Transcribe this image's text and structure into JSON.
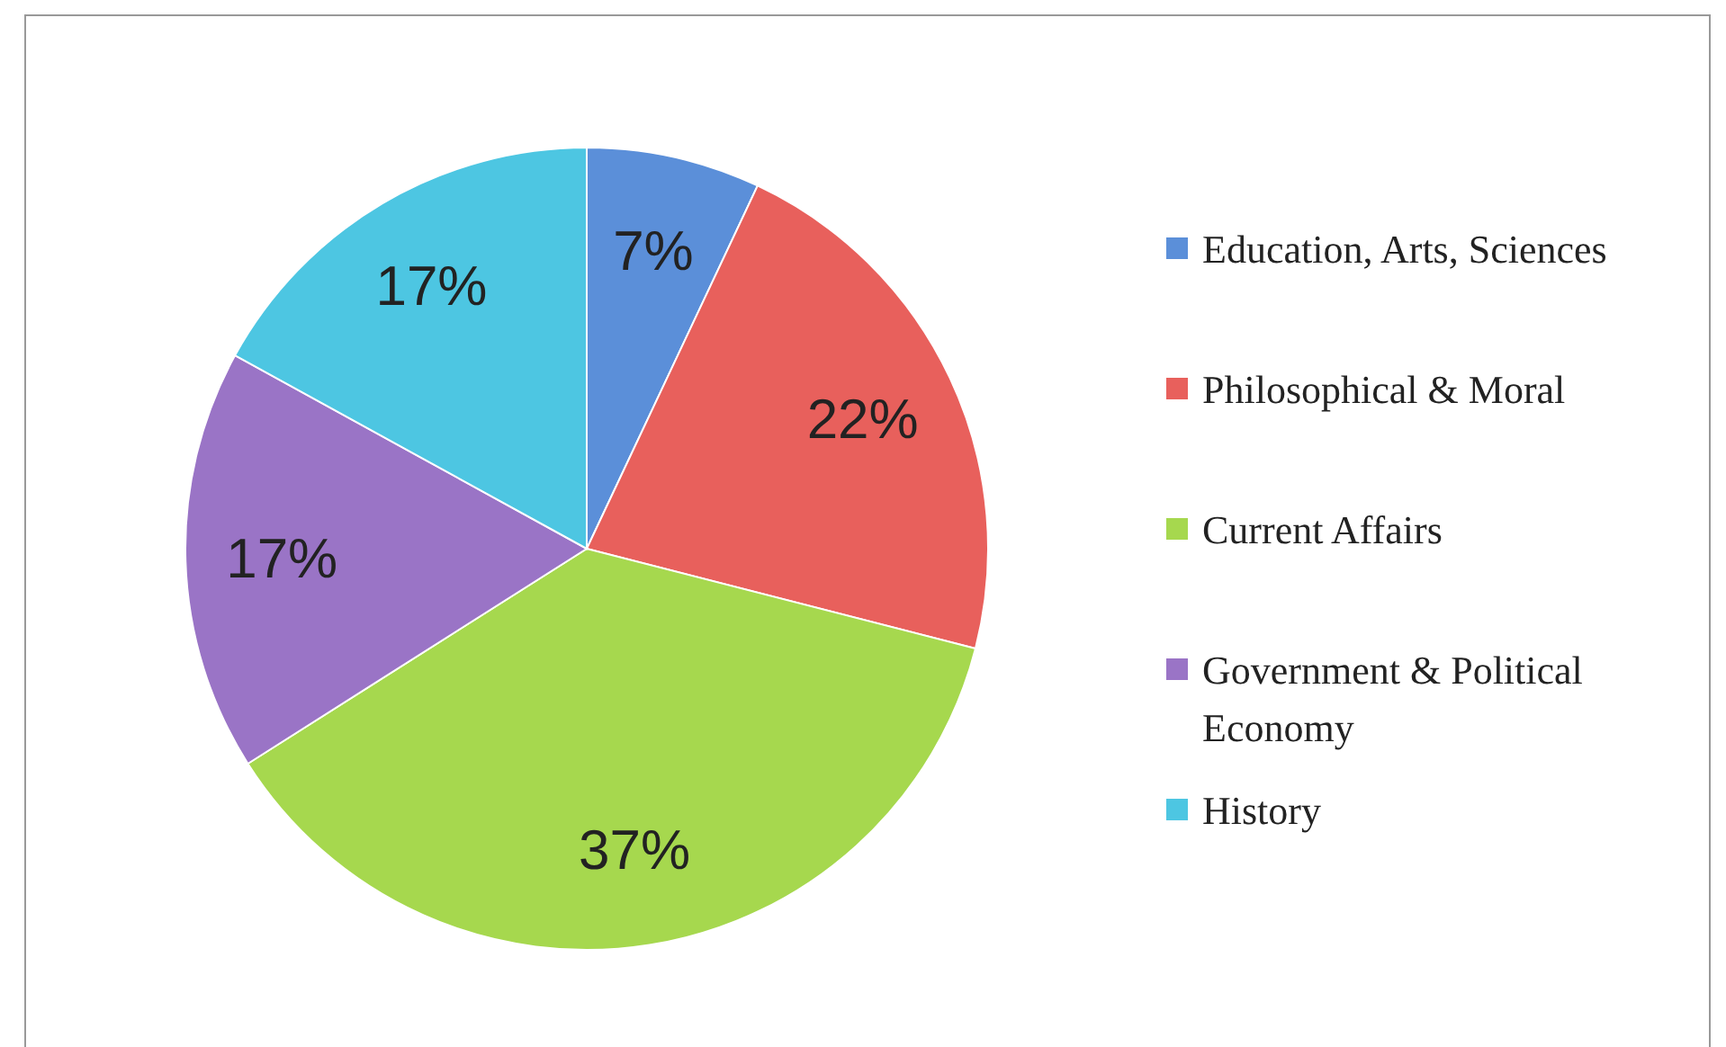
{
  "chart_data": {
    "type": "pie",
    "categories": [
      "Education, Arts, Sciences",
      "Philosophical & Moral",
      "Current Affairs",
      "Government & Political Economy",
      "History"
    ],
    "values": [
      7,
      22,
      37,
      17,
      17
    ],
    "colors": [
      "#5b8fd9",
      "#e8605c",
      "#a6d84e",
      "#9a74c6",
      "#4dc6e2"
    ],
    "value_labels": [
      "7%",
      "22%",
      "37%",
      "17%",
      "17%"
    ],
    "legend": "right"
  }
}
